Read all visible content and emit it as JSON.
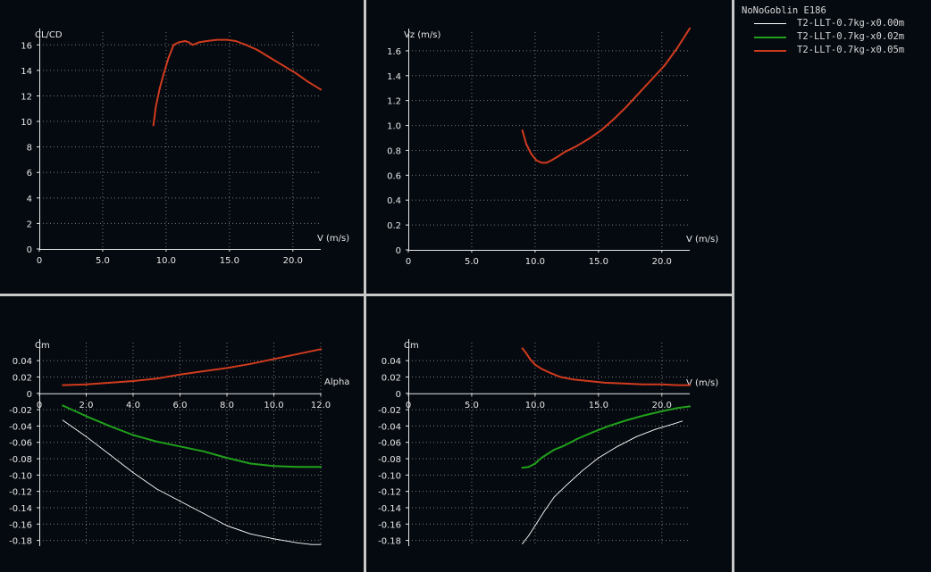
{
  "legend": {
    "title": "NoNoGoblin E186",
    "items": [
      {
        "label": "T2-LLT-0.7kg-x0.00m",
        "color": "#ffffff",
        "width": 1
      },
      {
        "label": "T2-LLT-0.7kg-x0.02m",
        "color": "#21a01c",
        "width": 2
      },
      {
        "label": "T2-LLT-0.7kg-x0.05m",
        "color": "#d03b1e",
        "width": 2
      }
    ]
  },
  "colors": {
    "background": "#050a10",
    "separator": "#c8c8c8",
    "axis": "#e6e6e6",
    "grid": "#7a7a7a",
    "text": "#e6e6e6"
  },
  "chart_data": [
    {
      "type": "line",
      "xlabel": "V (m/s)",
      "ylabel": "CL/CD",
      "xlim": [
        0,
        22.2
      ],
      "ylim": [
        0,
        17
      ],
      "xticks": [
        0,
        5,
        10,
        15,
        20
      ],
      "xtick_labels": [
        "0",
        "5.0",
        "10.0",
        "15.0",
        "20.0"
      ],
      "yticks": [
        0,
        2,
        4,
        6,
        8,
        10,
        12,
        14,
        16
      ],
      "ytick_labels": [
        "0",
        "2",
        "4",
        "6",
        "8",
        "10",
        "12",
        "14",
        "16"
      ],
      "grid": true,
      "series": [
        {
          "name": "T2-LLT-0.7kg-x0.05m",
          "color": "#d03b1e",
          "x": [
            9.0,
            9.2,
            9.5,
            9.8,
            10.2,
            10.6,
            11.0,
            11.5,
            11.8,
            12.1,
            12.6,
            13.2,
            14.0,
            14.8,
            15.5,
            16.3,
            17.2,
            18.2,
            19.2,
            20.2,
            21.2,
            22.2
          ],
          "y": [
            9.7,
            11.2,
            12.6,
            13.7,
            15.0,
            16.0,
            16.2,
            16.3,
            16.2,
            16.0,
            16.2,
            16.3,
            16.4,
            16.4,
            16.3,
            16.0,
            15.6,
            15.0,
            14.4,
            13.8,
            13.1,
            12.5
          ]
        }
      ]
    },
    {
      "type": "line",
      "xlabel": "V (m/s)",
      "ylabel": "Vz (m/s)",
      "xlim": [
        0,
        22.2
      ],
      "ylim": [
        0,
        1.75
      ],
      "xticks": [
        0,
        5,
        10,
        15,
        20
      ],
      "xtick_labels": [
        "0",
        "5.0",
        "10.0",
        "15.0",
        "20.0"
      ],
      "yticks": [
        0,
        0.2,
        0.4,
        0.6,
        0.8,
        1.0,
        1.2,
        1.4,
        1.6
      ],
      "ytick_labels": [
        "0",
        "0.2",
        "0.4",
        "0.6",
        "0.8",
        "1.0",
        "1.2",
        "1.4",
        "1.6"
      ],
      "grid": true,
      "series": [
        {
          "name": "T2-LLT-0.7kg-x0.05m",
          "color": "#d03b1e",
          "x": [
            9.0,
            9.3,
            9.7,
            10.1,
            10.5,
            10.9,
            11.3,
            11.8,
            12.4,
            13.2,
            14.2,
            15.2,
            16.2,
            17.2,
            18.2,
            19.2,
            20.2,
            21.2,
            22.2
          ],
          "y": [
            0.96,
            0.85,
            0.77,
            0.72,
            0.7,
            0.7,
            0.72,
            0.75,
            0.79,
            0.83,
            0.89,
            0.96,
            1.05,
            1.15,
            1.26,
            1.37,
            1.48,
            1.62,
            1.78
          ]
        }
      ]
    },
    {
      "type": "line",
      "xlabel": "Alpha",
      "ylabel": "Cm",
      "xlim": [
        0,
        12
      ],
      "ylim": [
        -0.187,
        0.062
      ],
      "xticks": [
        0,
        2,
        4,
        6,
        8,
        10,
        12
      ],
      "xtick_labels": [
        "0",
        "2.0",
        "4.0",
        "6.0",
        "8.0",
        "10.0",
        "12.0"
      ],
      "yticks": [
        0.04,
        0.02,
        0,
        -0.02,
        -0.04,
        -0.06,
        -0.08,
        -0.1,
        -0.12,
        -0.14,
        -0.16,
        -0.18
      ],
      "ytick_labels": [
        "0.04",
        "0.02",
        "0",
        "-0.02",
        "-0.04",
        "-0.06",
        "-0.08",
        "-0.10",
        "-0.12",
        "-0.14",
        "-0.16",
        "-0.18"
      ],
      "grid": true,
      "series": [
        {
          "name": "T2-LLT-0.7kg-x0.00m",
          "color": "#ffffff",
          "x": [
            1.0,
            2.0,
            3.0,
            4.0,
            5.0,
            6.0,
            7.0,
            8.0,
            9.0,
            10.0,
            11.0,
            11.6,
            12.0
          ],
          "y": [
            -0.033,
            -0.053,
            -0.075,
            -0.097,
            -0.117,
            -0.132,
            -0.147,
            -0.162,
            -0.172,
            -0.178,
            -0.183,
            -0.185,
            -0.185
          ]
        },
        {
          "name": "T2-LLT-0.7kg-x0.02m",
          "color": "#21a01c",
          "x": [
            1.0,
            2.0,
            3.0,
            4.0,
            5.0,
            6.0,
            7.0,
            8.0,
            9.0,
            10.0,
            11.0,
            12.0
          ],
          "y": [
            -0.015,
            -0.028,
            -0.04,
            -0.051,
            -0.059,
            -0.065,
            -0.071,
            -0.079,
            -0.086,
            -0.089,
            -0.09,
            -0.09
          ]
        },
        {
          "name": "T2-LLT-0.7kg-x0.05m",
          "color": "#d03b1e",
          "x": [
            1.0,
            2.0,
            3.0,
            4.0,
            5.0,
            6.0,
            7.0,
            8.0,
            9.0,
            10.0,
            11.0,
            12.0
          ],
          "y": [
            0.01,
            0.011,
            0.013,
            0.015,
            0.018,
            0.023,
            0.027,
            0.031,
            0.036,
            0.042,
            0.048,
            0.054
          ]
        }
      ]
    },
    {
      "type": "line",
      "xlabel": "V (m/s)",
      "ylabel": "Cm",
      "xlim": [
        0,
        22.2
      ],
      "ylim": [
        -0.187,
        0.062
      ],
      "xticks": [
        0,
        5,
        10,
        15,
        20
      ],
      "xtick_labels": [
        "0",
        "5.0",
        "10.0",
        "15.0",
        "20.0"
      ],
      "yticks": [
        0.04,
        0.02,
        0,
        -0.02,
        -0.04,
        -0.06,
        -0.08,
        -0.1,
        -0.12,
        -0.14,
        -0.16,
        -0.18
      ],
      "ytick_labels": [
        "0.04",
        "0.02",
        "0",
        "-0.02",
        "-0.04",
        "-0.06",
        "-0.08",
        "-0.10",
        "-0.12",
        "-0.14",
        "-0.16",
        "-0.18"
      ],
      "grid": true,
      "series": [
        {
          "name": "T2-LLT-0.7kg-x0.00m",
          "color": "#ffffff",
          "x": [
            9.0,
            9.5,
            10.0,
            10.7,
            11.5,
            12.5,
            13.7,
            15.0,
            16.5,
            18.0,
            19.5,
            21.0,
            21.6
          ],
          "y": [
            -0.184,
            -0.174,
            -0.162,
            -0.145,
            -0.127,
            -0.112,
            -0.095,
            -0.079,
            -0.065,
            -0.053,
            -0.044,
            -0.037,
            -0.034
          ]
        },
        {
          "name": "T2-LLT-0.7kg-x0.02m",
          "color": "#21a01c",
          "x": [
            9.0,
            9.5,
            10.0,
            10.5,
            11.0,
            11.5,
            12.3,
            13.3,
            14.5,
            15.8,
            17.2,
            18.6,
            20.0,
            21.2,
            22.2
          ],
          "y": [
            -0.091,
            -0.09,
            -0.086,
            -0.079,
            -0.074,
            -0.069,
            -0.064,
            -0.056,
            -0.048,
            -0.04,
            -0.033,
            -0.027,
            -0.022,
            -0.018,
            -0.016
          ]
        },
        {
          "name": "T2-LLT-0.7kg-x0.05m",
          "color": "#d03b1e",
          "x": [
            9.0,
            9.3,
            9.6,
            10.0,
            10.5,
            11.2,
            12.0,
            13.0,
            14.2,
            15.5,
            17.0,
            18.5,
            20.0,
            21.2,
            22.2
          ],
          "y": [
            0.055,
            0.049,
            0.042,
            0.035,
            0.03,
            0.025,
            0.02,
            0.017,
            0.015,
            0.013,
            0.012,
            0.011,
            0.011,
            0.01,
            0.01
          ]
        }
      ]
    }
  ]
}
